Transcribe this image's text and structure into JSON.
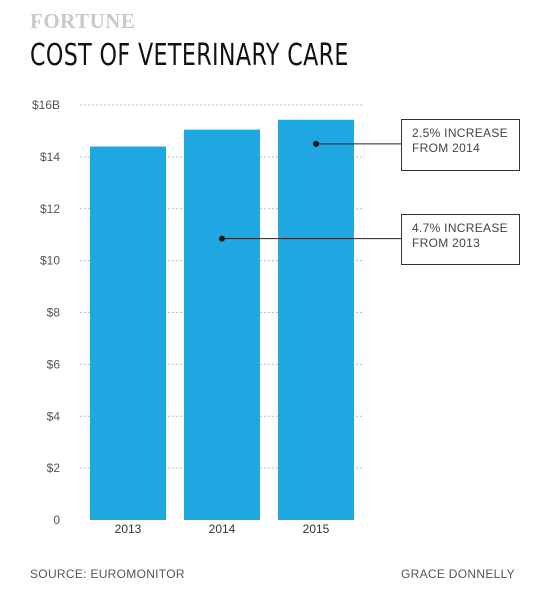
{
  "brand": "FORTUNE",
  "chart_data": {
    "type": "bar",
    "title": "COST OF VETERINARY CARE",
    "categories": [
      "2013",
      "2014",
      "2015"
    ],
    "values": [
      14.4,
      15.05,
      15.43
    ],
    "ylim": [
      0,
      16
    ],
    "yticks": [
      {
        "value": 0,
        "label": "0"
      },
      {
        "value": 2,
        "label": "$2"
      },
      {
        "value": 4,
        "label": "$4"
      },
      {
        "value": 6,
        "label": "$6"
      },
      {
        "value": 8,
        "label": "$8"
      },
      {
        "value": 10,
        "label": "$10"
      },
      {
        "value": 12,
        "label": "$12"
      },
      {
        "value": 14,
        "label": "$14"
      },
      {
        "value": 16,
        "label": "$16B"
      }
    ],
    "grid": true,
    "bar_color": "#1ea7e1",
    "annotations": [
      {
        "text_line1": "2.5% INCREASE",
        "text_line2": "FROM 2014",
        "category": "2015",
        "at_value": 14.5
      },
      {
        "text_line1": "4.7% INCREASE",
        "text_line2": "FROM 2013",
        "category": "2014",
        "at_value": 10.85
      }
    ]
  },
  "footer": {
    "source": "SOURCE: EUROMONITOR",
    "credit": "GRACE DONNELLY"
  }
}
